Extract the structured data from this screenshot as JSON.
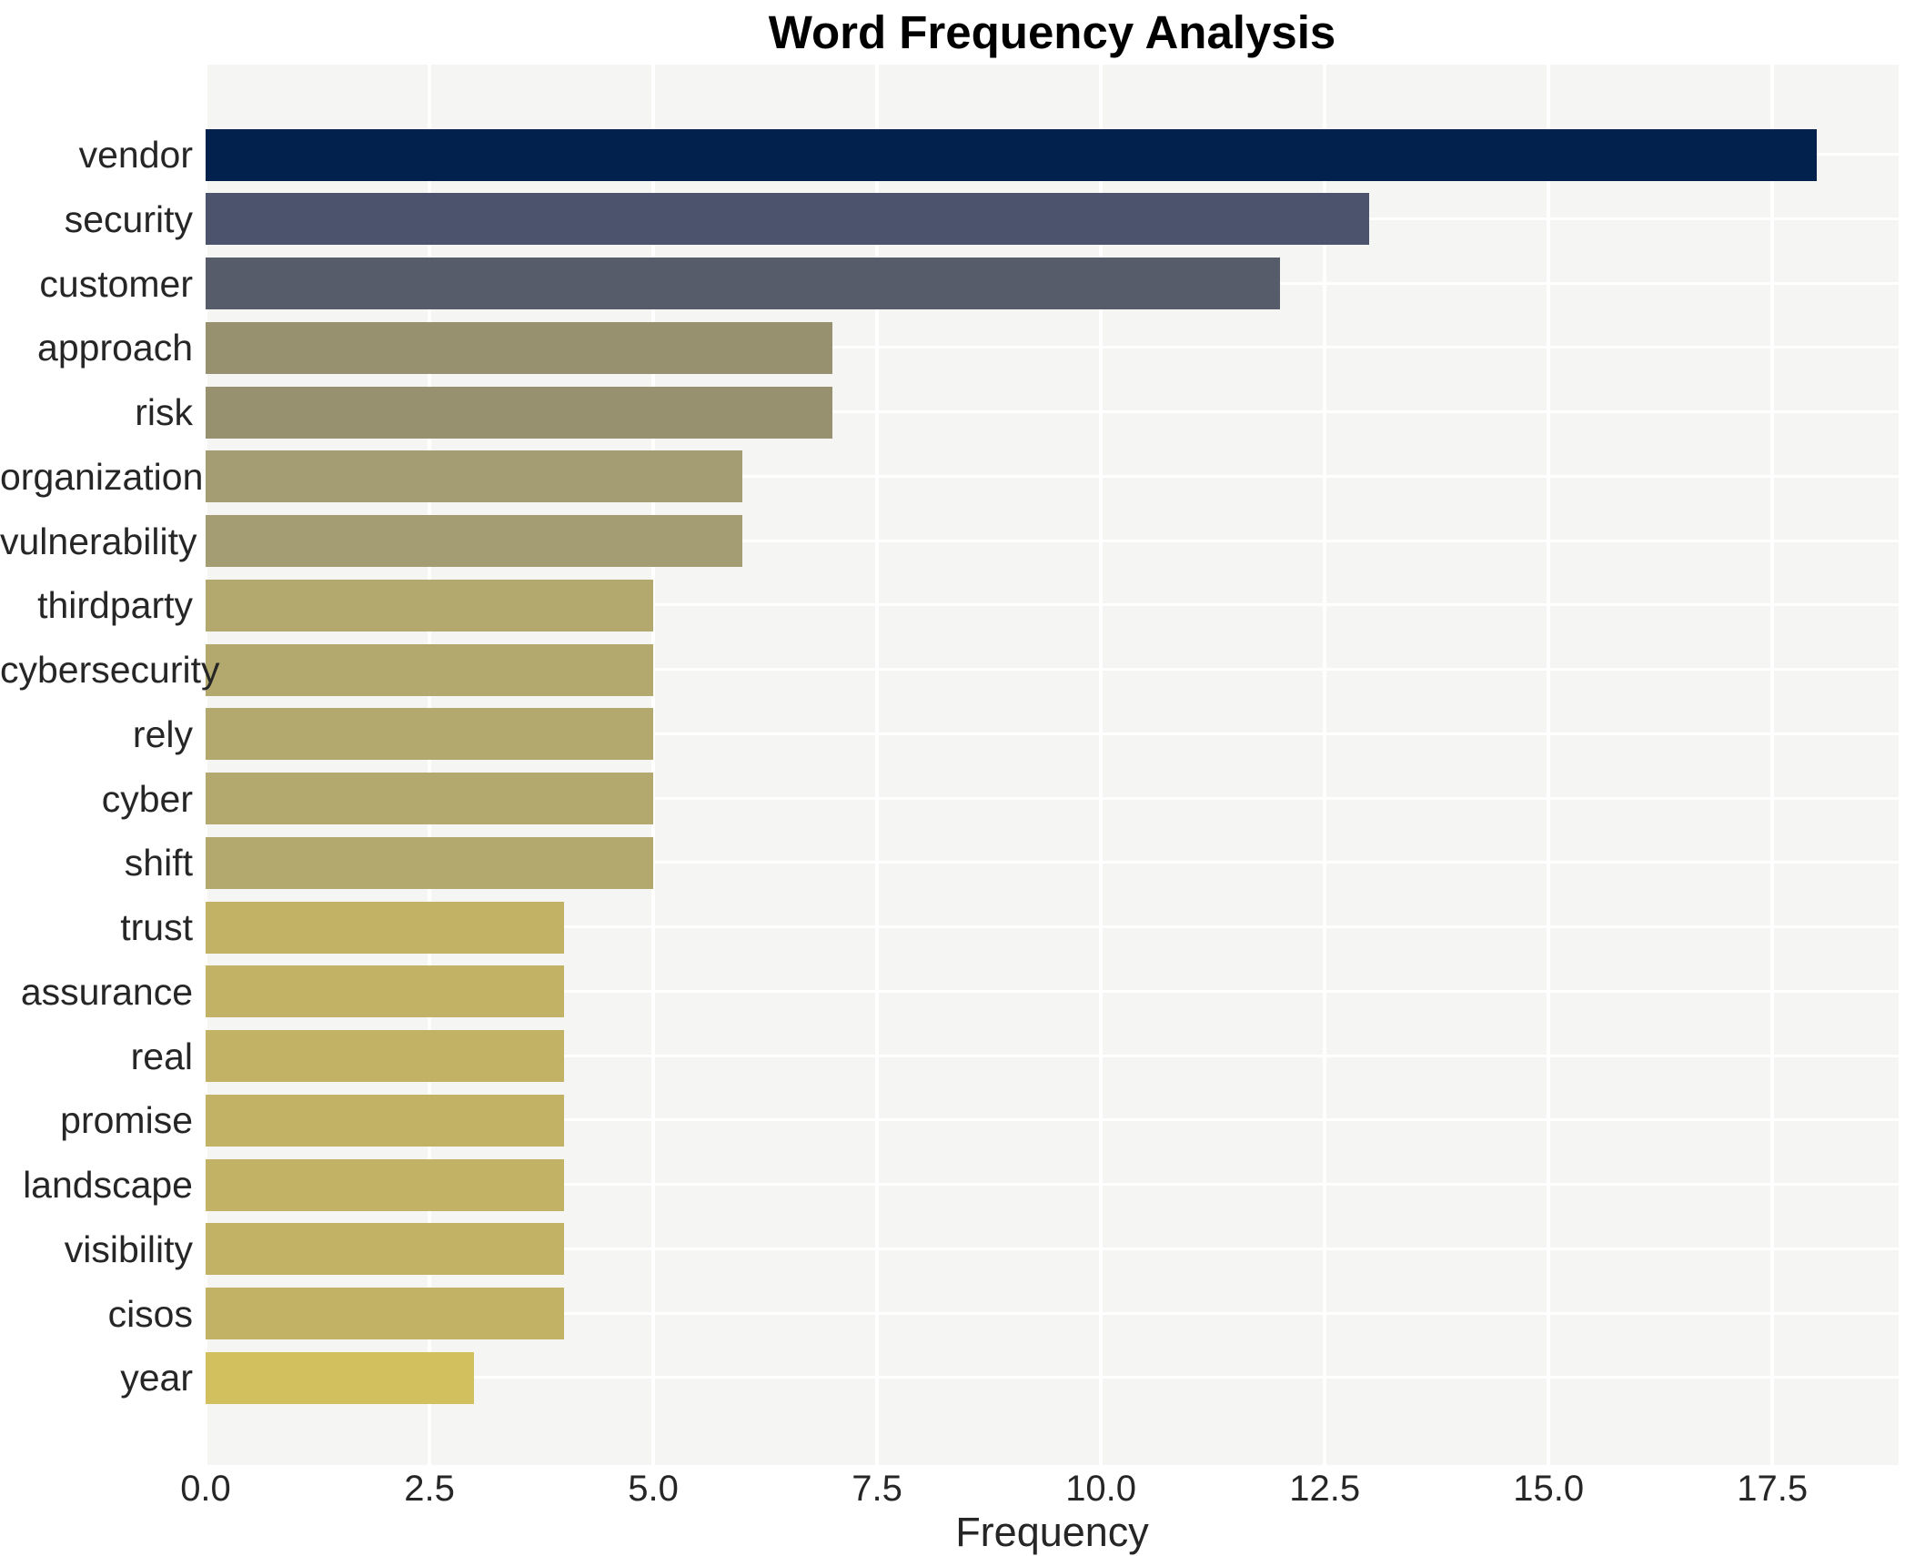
{
  "title": "Word Frequency Analysis",
  "chart_data": {
    "type": "bar",
    "orientation": "horizontal",
    "title": "Word Frequency Analysis",
    "xlabel": "Frequency",
    "ylabel": "",
    "categories": [
      "vendor",
      "security",
      "customer",
      "approach",
      "risk",
      "organization",
      "vulnerability",
      "thirdparty",
      "cybersecurity",
      "rely",
      "cyber",
      "shift",
      "trust",
      "assurance",
      "real",
      "promise",
      "landscape",
      "visibility",
      "cisos",
      "year"
    ],
    "values": [
      18,
      13,
      12,
      7,
      7,
      6,
      6,
      5,
      5,
      5,
      5,
      5,
      4,
      4,
      4,
      4,
      4,
      4,
      4,
      3
    ],
    "bar_colors": [
      "#02224d",
      "#4b546c",
      "#575c6b",
      "#98916f",
      "#98916f",
      "#a49c72",
      "#a49c72",
      "#b3a96e",
      "#b3a96e",
      "#b3a96e",
      "#b3a96e",
      "#b3a96e",
      "#c2b266",
      "#c2b266",
      "#c2b266",
      "#c2b266",
      "#c2b266",
      "#c2b266",
      "#c2b266",
      "#d2bf5e"
    ],
    "x_ticks": [
      0.0,
      2.5,
      5.0,
      7.5,
      10.0,
      12.5,
      15.0,
      17.5
    ],
    "x_tick_labels": [
      "0.0",
      "2.5",
      "5.0",
      "7.5",
      "10.0",
      "12.5",
      "15.0",
      "17.5"
    ],
    "xlim": [
      0,
      18.91
    ],
    "grid": true,
    "legend_position": "none",
    "colors": {
      "plot_background": "#f5f5f3",
      "grid_color": "#ffffff",
      "text_color": "#262626",
      "title_color": "#000000",
      "figure_background": "#ffffff"
    }
  }
}
